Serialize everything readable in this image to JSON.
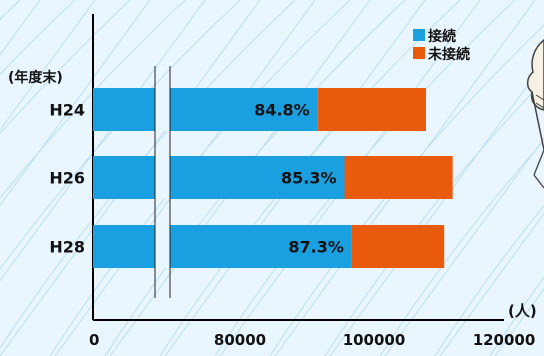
{
  "chart_data": {
    "type": "bar",
    "orientation": "horizontal",
    "stacked": true,
    "axis_break": true,
    "title": "",
    "y_unit_label": "(年度末)",
    "x_unit_label": "(人)",
    "categories": [
      "H24",
      "H26",
      "H28"
    ],
    "x_ticks": [
      0,
      80000,
      100000,
      120000
    ],
    "x_tick_labels": [
      "0",
      "80000",
      "100000",
      "120000"
    ],
    "series": [
      {
        "name": "接続",
        "color": "#1a9fe0",
        "values": [
          91600,
          95600,
          96700
        ]
      },
      {
        "name": "未接続",
        "color": "#e85a0c",
        "values": [
          16400,
          16500,
          14100
        ]
      }
    ],
    "data_labels": [
      "84.8%",
      "85.3%",
      "87.3%"
    ],
    "legend": {
      "position": "top-right",
      "entries": [
        "接続",
        "未接続"
      ]
    },
    "grid": false,
    "colors": {
      "background": "#eaf6fd",
      "pattern_lines": "#bcdff2"
    }
  }
}
